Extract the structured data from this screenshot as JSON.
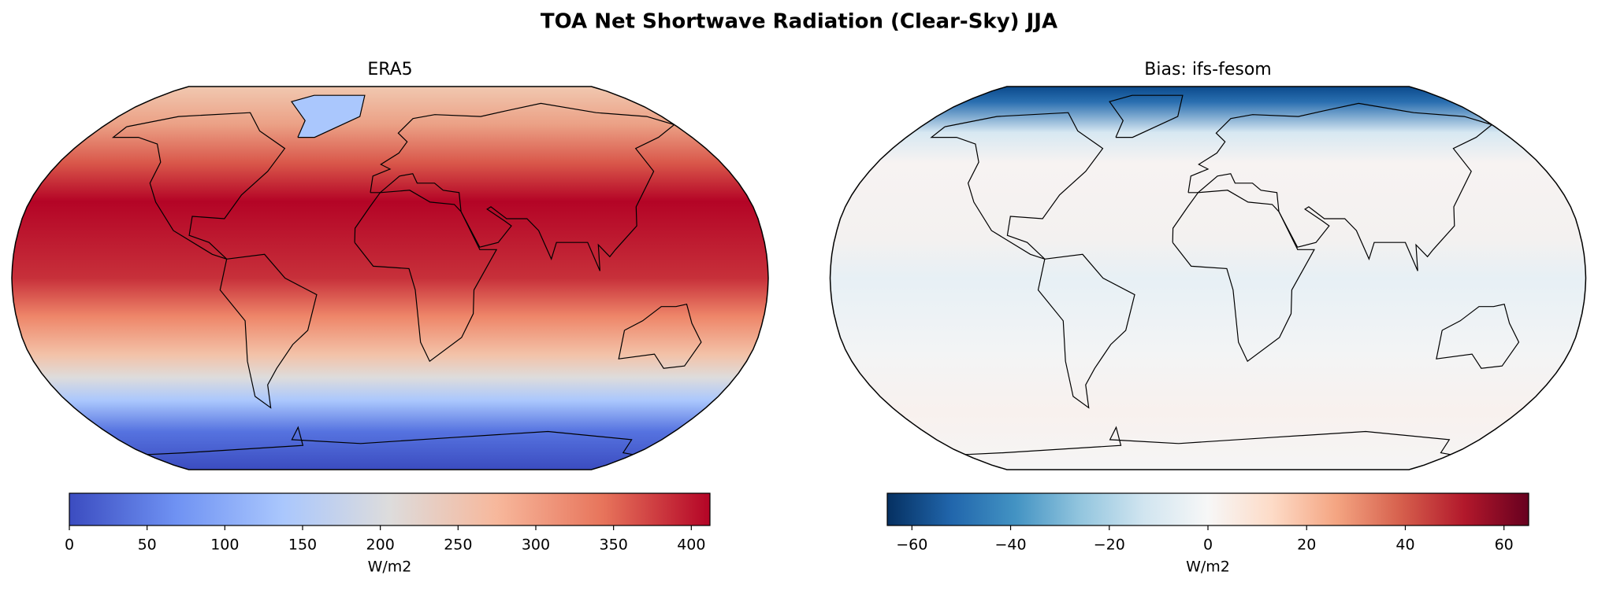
{
  "title": "TOA Net Shortwave Radiation (Clear-Sky) JJA",
  "panels": [
    {
      "title": "ERA5",
      "cmap": "coolwarm",
      "colorbar": {
        "range": [
          0,
          412
        ],
        "ticks": [
          0,
          50,
          100,
          150,
          200,
          250,
          300,
          350,
          400
        ],
        "label": "W/m2"
      }
    },
    {
      "title": "Bias: ifs-fesom",
      "cmap": "RdBu_r",
      "colorbar": {
        "range": [
          -65,
          65
        ],
        "ticks": [
          {
            "value": -60,
            "label": "−60"
          },
          {
            "value": -40,
            "label": "−40"
          },
          {
            "value": -20,
            "label": "−20"
          },
          0,
          20,
          40,
          60
        ],
        "label": "W/m2"
      }
    }
  ]
}
